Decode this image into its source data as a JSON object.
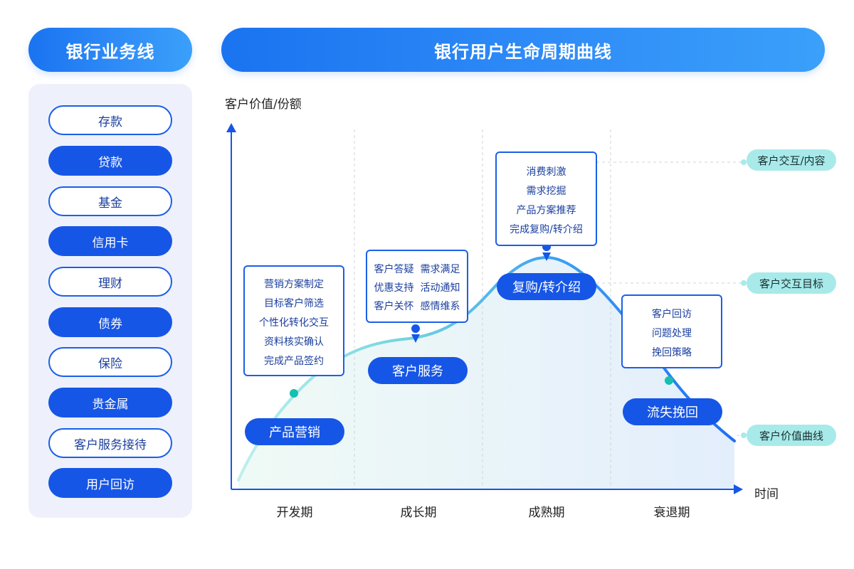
{
  "left_panel": {
    "title": "银行业务线",
    "items": [
      {
        "label": "存款",
        "style": "outline"
      },
      {
        "label": "贷款",
        "style": "filled"
      },
      {
        "label": "基金",
        "style": "outline"
      },
      {
        "label": "信用卡",
        "style": "filled"
      },
      {
        "label": "理财",
        "style": "outline"
      },
      {
        "label": "债券",
        "style": "filled"
      },
      {
        "label": "保险",
        "style": "outline"
      },
      {
        "label": "贵金属",
        "style": "filled"
      },
      {
        "label": "客户服务接待",
        "style": "outline"
      },
      {
        "label": "用户回访",
        "style": "filled"
      }
    ]
  },
  "diagram": {
    "title": "银行用户生命周期曲线",
    "y_axis_label": "客户价值/份额",
    "x_axis_label": "时间",
    "phases": [
      "开发期",
      "成长期",
      "成熟期",
      "衰退期"
    ],
    "stages": [
      {
        "label": "产品营销",
        "notes": [
          "营销方案制定",
          "目标客户筛选",
          "个性化转化交互",
          "资料核实确认",
          "完成产品签约"
        ]
      },
      {
        "label": "客户服务",
        "notes": [
          "客户答疑  需求满足",
          "优惠支持  活动通知",
          "客户关怀  感情维系"
        ]
      },
      {
        "label": "复购/转介绍",
        "notes": [
          "消费刺激",
          "需求挖掘",
          "产品方案推荐",
          "完成复购/转介绍"
        ]
      },
      {
        "label": "流失挽回",
        "notes": [
          "客户回访",
          "问题处理",
          "挽回策略"
        ]
      }
    ],
    "legend": [
      "客户交互/内容",
      "客户交互目标",
      "客户价值曲线"
    ]
  },
  "colors": {
    "primary": "#1656e6",
    "accent": "#1a73f0",
    "teal": "#7fdcdc",
    "panel_bg": "#eef1fb",
    "tag_bg": "#a8eaea"
  }
}
